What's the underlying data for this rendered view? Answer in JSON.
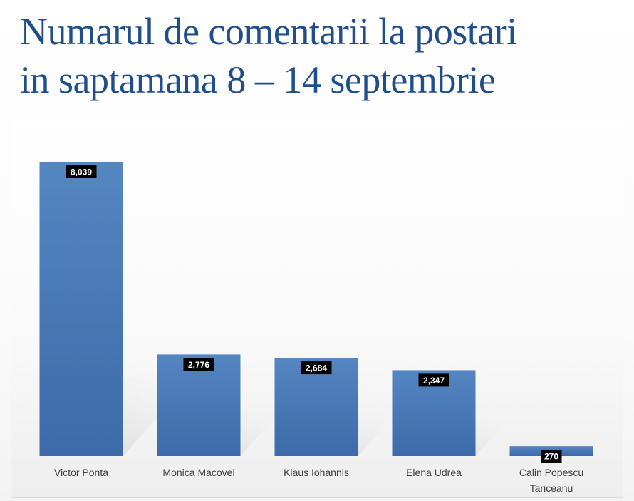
{
  "chart_data": {
    "type": "bar",
    "title_lines": [
      "Numarul de comentarii la postari",
      "in saptamana 8 – 14 septembrie"
    ],
    "categories": [
      "Victor Ponta",
      "Monica Macovei",
      "Klaus Iohannis",
      "Elena Udrea",
      "Calin Popescu Tariceanu"
    ],
    "category_label_lines": [
      [
        "Victor Ponta"
      ],
      [
        "Monica Macovei"
      ],
      [
        "Klaus Iohannis"
      ],
      [
        "Elena Udrea"
      ],
      [
        "Calin Popescu",
        "Tariceanu"
      ]
    ],
    "values": [
      8039,
      2776,
      2684,
      2347,
      270
    ],
    "value_labels": [
      "8,039",
      "2,776",
      "2,684",
      "2,347",
      "270"
    ],
    "xlabel": "",
    "ylabel": "",
    "ylim": [
      0,
      8039
    ],
    "grid": false,
    "legend": false,
    "bar_color": "#4a7ab8",
    "label_box_color": "#000000",
    "title_color": "#1f4e8c"
  }
}
